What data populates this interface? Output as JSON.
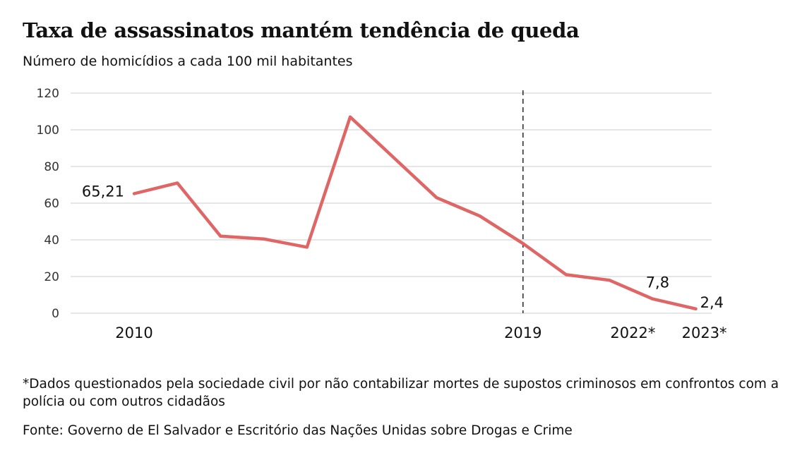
{
  "title": "Taxa de assassinatos mantém tendência de queda",
  "subtitle": "Número de homicídios a cada 100 mil habitantes",
  "footnote": "*Dados questionados pela sociedade civil por não contabilizar mortes de supostos criminosos em confrontos com a polícia ou com outros cidadãos",
  "source": "Fonte: Governo de El Salvador e Escritório das Nações Unidas sobre Drogas e Crime",
  "colors": {
    "line": "#e06666",
    "grid": "#dddddd",
    "reference_line": "#333333"
  },
  "chart_data": {
    "type": "line",
    "x": [
      2010,
      2011,
      2012,
      2013,
      2014,
      2015,
      2016,
      2017,
      2018,
      2019,
      2020,
      2021,
      2022,
      2023
    ],
    "values": [
      65.21,
      71,
      42,
      40.5,
      36,
      107,
      85,
      63,
      53,
      38,
      21,
      18,
      7.8,
      2.4
    ],
    "ylim": [
      0,
      120
    ],
    "yticks": [
      0,
      20,
      40,
      60,
      80,
      100,
      120
    ],
    "x_tick_labels": [
      {
        "x": 2010,
        "label": "2010"
      },
      {
        "x": 2019,
        "label": "2019"
      },
      {
        "x": 2022,
        "label": "2022*"
      },
      {
        "x": 2023,
        "label": "2023*"
      }
    ],
    "data_labels": [
      {
        "x": 2010,
        "label": "65,21"
      },
      {
        "x": 2022,
        "label": "7,8"
      },
      {
        "x": 2023,
        "label": "2,4"
      }
    ],
    "reference_line_x": 2019,
    "grid": true,
    "xlabel": "",
    "ylabel": ""
  }
}
